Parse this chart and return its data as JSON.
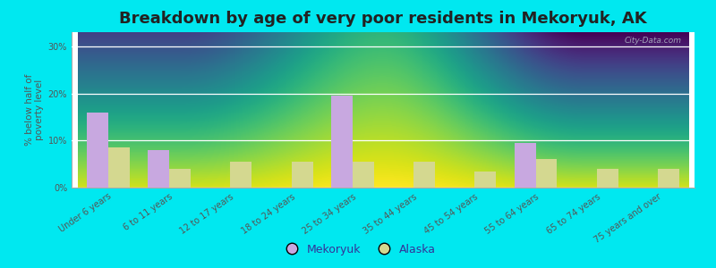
{
  "title": "Breakdown by age of very poor residents in Mekoryuk, AK",
  "ylabel": "% below half of\npoverty level",
  "categories": [
    "Under 6 years",
    "6 to 11 years",
    "12 to 17 years",
    "18 to 24 years",
    "25 to 34 years",
    "35 to 44 years",
    "45 to 54 years",
    "55 to 64 years",
    "65 to 74 years",
    "75 years and over"
  ],
  "mekoryuk_values": [
    16.0,
    8.0,
    0.0,
    0.0,
    19.5,
    0.0,
    0.0,
    9.5,
    0.0,
    0.0
  ],
  "alaska_values": [
    8.5,
    4.0,
    5.5,
    5.5,
    5.5,
    5.5,
    3.5,
    6.0,
    4.0,
    4.0
  ],
  "mekoryuk_color": "#c8a8e0",
  "alaska_color": "#d4d890",
  "background_color": "#00e8f0",
  "plot_bg_top_color": "#d8ecd0",
  "plot_bg_bottom_color": "#f8fbf8",
  "yticks": [
    0,
    10,
    20,
    30
  ],
  "ylim": [
    0,
    33
  ],
  "bar_width": 0.35,
  "title_fontsize": 13,
  "axis_label_fontsize": 7.5,
  "tick_fontsize": 7,
  "legend_fontsize": 9,
  "watermark_text": "City-Data.com",
  "watermark_color": "#b0bcc8"
}
